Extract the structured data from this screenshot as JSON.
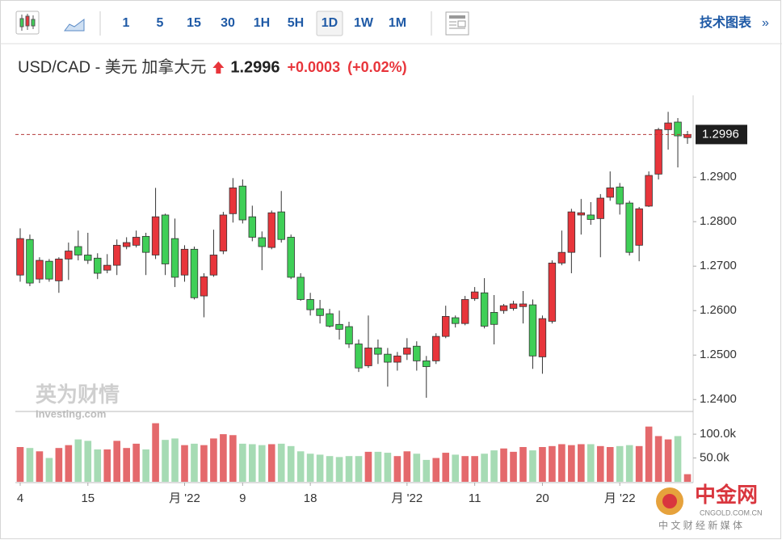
{
  "toolbar": {
    "intervals": [
      "1",
      "5",
      "15",
      "30",
      "1H",
      "5H",
      "1D",
      "1W",
      "1M"
    ],
    "selected": "1D",
    "technical_link": "技术图表"
  },
  "header": {
    "symbol": "USD/CAD - 美元 加拿大元",
    "change": "+0.0003",
    "change_pct": "(+0.02%)"
  },
  "watermark": {
    "brand": "英为财情",
    "sub": "Investing.com"
  },
  "footer_logo": {
    "name": "中金网",
    "url": "CNGOLD.COM.CN",
    "tagline": "中 文 财 经 新 媒 体"
  },
  "chart_data": {
    "type": "candlestick",
    "xlim": [
      -0.5,
      69.5
    ],
    "xticks": [
      {
        "value": 0,
        "label": "4"
      },
      {
        "value": 7,
        "label": "15"
      },
      {
        "value": 17,
        "label": "月 '22"
      },
      {
        "value": 23,
        "label": "9"
      },
      {
        "value": 30,
        "label": "18"
      },
      {
        "value": 40,
        "label": "月 '22"
      },
      {
        "value": 47,
        "label": "11"
      },
      {
        "value": 54,
        "label": "20"
      },
      {
        "value": 62,
        "label": "月 '22"
      }
    ],
    "ylim": [
      1.2375,
      1.3084
    ],
    "yticks": [
      {
        "value": 1.24,
        "label": "1.2400"
      },
      {
        "value": 1.25,
        "label": "1.2500"
      },
      {
        "value": 1.26,
        "label": "1.2600"
      },
      {
        "value": 1.27,
        "label": "1.2700"
      },
      {
        "value": 1.28,
        "label": "1.2800"
      },
      {
        "value": 1.29,
        "label": "1.2900"
      }
    ],
    "last_price": 1.2996,
    "up_color": "#e8353b",
    "down_color": "#3fcf57",
    "volume_up_color": "#e4696c",
    "volume_down_color": "#a6dbb4",
    "open": [
      1.268,
      1.276,
      1.2671,
      1.2711,
      1.2667,
      1.2716,
      1.2744,
      1.2725,
      1.2718,
      1.2691,
      1.2702,
      1.2744,
      1.2747,
      1.2767,
      1.2725,
      1.2815,
      1.2762,
      1.268,
      1.2738,
      1.2633,
      1.268,
      1.2734,
      1.2818,
      1.288,
      1.2811,
      1.2764,
      1.2742,
      1.2822,
      1.2765,
      1.2675,
      1.2625,
      1.2604,
      1.2593,
      1.2569,
      1.2564,
      1.2525,
      1.2476,
      1.2516,
      1.2502,
      1.2484,
      1.2502,
      1.252,
      1.2487,
      1.2487,
      1.2542,
      1.2584,
      1.2571,
      1.2627,
      1.264,
      1.2596,
      1.26,
      1.2605,
      1.2609,
      1.2613,
      1.2496,
      1.2576,
      1.2707,
      1.2731,
      1.2815,
      1.2815,
      1.2807,
      1.2855,
      1.2878,
      1.2842,
      1.2747,
      1.2835,
      1.2907,
      1.3007,
      1.3024,
      1.2989
    ],
    "high": [
      1.2785,
      1.2771,
      1.272,
      1.2716,
      1.272,
      1.2753,
      1.278,
      1.2775,
      1.2729,
      1.2727,
      1.276,
      1.2765,
      1.278,
      1.2775,
      1.2876,
      1.2818,
      1.2807,
      1.2747,
      1.2744,
      1.2684,
      1.2782,
      1.2822,
      1.2898,
      1.2895,
      1.2836,
      1.2778,
      1.2825,
      1.2869,
      1.2771,
      1.2684,
      1.264,
      1.2624,
      1.2604,
      1.26,
      1.2575,
      1.2535,
      1.2589,
      1.2535,
      1.2516,
      1.2507,
      1.2538,
      1.2531,
      1.2498,
      1.2549,
      1.2611,
      1.2589,
      1.2633,
      1.2653,
      1.2673,
      1.2635,
      1.2615,
      1.2622,
      1.2644,
      1.2625,
      1.2589,
      1.2713,
      1.278,
      1.2829,
      1.2851,
      1.2844,
      1.2862,
      1.2913,
      1.2887,
      1.2847,
      1.2833,
      1.2913,
      1.3011,
      1.3047,
      1.3033,
      1.3004
    ],
    "low": [
      1.2665,
      1.2655,
      1.2662,
      1.2665,
      1.264,
      1.2669,
      1.2713,
      1.2705,
      1.2671,
      1.2684,
      1.268,
      1.2738,
      1.2742,
      1.268,
      1.2716,
      1.268,
      1.2653,
      1.2665,
      1.2625,
      1.2585,
      1.2676,
      1.2727,
      1.2798,
      1.2796,
      1.2756,
      1.2691,
      1.2738,
      1.2753,
      1.2671,
      1.2622,
      1.2589,
      1.2571,
      1.2562,
      1.2535,
      1.2516,
      1.2462,
      1.2471,
      1.248,
      1.2429,
      1.2465,
      1.2489,
      1.2465,
      1.2404,
      1.248,
      1.2538,
      1.2562,
      1.2567,
      1.2622,
      1.256,
      1.2524,
      1.2593,
      1.26,
      1.2571,
      1.2469,
      1.2458,
      1.2571,
      1.2702,
      1.2684,
      1.2771,
      1.2793,
      1.272,
      1.2847,
      1.2816,
      1.2724,
      1.2711,
      1.2833,
      1.2895,
      1.2962,
      1.2922,
      1.2975
    ],
    "close": [
      1.2762,
      1.2662,
      1.2713,
      1.2671,
      1.2716,
      1.2734,
      1.2725,
      1.2713,
      1.2684,
      1.2702,
      1.2747,
      1.2753,
      1.2765,
      1.2731,
      1.2811,
      1.2705,
      1.2675,
      1.2738,
      1.2629,
      1.2676,
      1.2725,
      1.2815,
      1.2876,
      1.2804,
      1.2765,
      1.2744,
      1.282,
      1.276,
      1.2675,
      1.2625,
      1.2602,
      1.2589,
      1.2565,
      1.2558,
      1.2525,
      1.2471,
      1.2516,
      1.2502,
      1.2484,
      1.2498,
      1.2516,
      1.2487,
      1.2474,
      1.2542,
      1.2587,
      1.2571,
      1.2625,
      1.2642,
      1.2565,
      1.2569,
      1.2611,
      1.2615,
      1.2615,
      1.2498,
      1.2582,
      1.2707,
      1.2731,
      1.2822,
      1.282,
      1.2805,
      1.2853,
      1.2876,
      1.284,
      1.2731,
      1.2829,
      1.2904,
      1.3007,
      1.3022,
      1.2993,
      1.2996
    ],
    "volume": {
      "ylim": [
        0,
        146000
      ],
      "yticks": [
        {
          "value": 100000,
          "label": "100.0k"
        },
        {
          "value": 50000,
          "label": "50.0k"
        }
      ],
      "values": [
        73000,
        71000,
        64000,
        50000,
        71000,
        77000,
        89000,
        86000,
        68000,
        68000,
        86000,
        71000,
        80000,
        68000,
        123000,
        88000,
        91000,
        77000,
        80000,
        77000,
        91000,
        100000,
        98000,
        80000,
        79000,
        77000,
        79000,
        80000,
        75000,
        64000,
        59000,
        57000,
        54000,
        52000,
        54000,
        54000,
        63000,
        63000,
        61000,
        54000,
        64000,
        59000,
        46000,
        50000,
        61000,
        57000,
        54000,
        54000,
        59000,
        66000,
        70000,
        63000,
        73000,
        66000,
        73000,
        75000,
        79000,
        77000,
        79000,
        79000,
        75000,
        73000,
        75000,
        77000,
        75000,
        116000,
        96000,
        89000,
        96000,
        16000
      ]
    }
  }
}
